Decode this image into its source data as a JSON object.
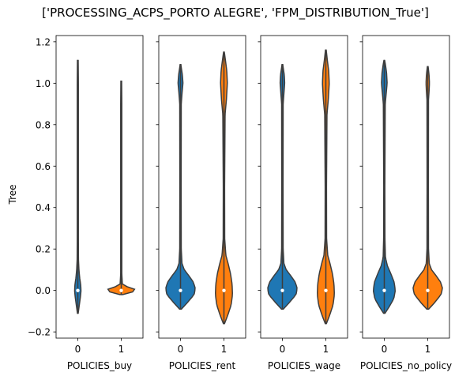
{
  "chart_data": {
    "type": "violin",
    "suptitle": "['PROCESSING_ACPS_PORTO ALEGRE', 'FPM_DISTRIBUTION_True']",
    "ylabel": "Tree",
    "ylim": [
      -0.23,
      1.23
    ],
    "yticks": [
      -0.2,
      0.0,
      0.2,
      0.4,
      0.6,
      0.8,
      1.0,
      1.2
    ],
    "ytick_labels": [
      "−0.2",
      "0.0",
      "0.2",
      "0.4",
      "0.6",
      "0.8",
      "1.0",
      "1.2"
    ],
    "sharey": true,
    "category_colors": [
      "#1f77b4",
      "#ff7f0e"
    ],
    "panels": [
      {
        "xlabel": "POLICIES_buy",
        "categories": [
          "0",
          "1"
        ],
        "violins": [
          {
            "category": "0",
            "min": -0.11,
            "max": 1.11,
            "median": 0.0,
            "profile": [
              [
                -0.11,
                0.02
              ],
              [
                -0.07,
                0.08
              ],
              [
                -0.03,
                0.14
              ],
              [
                0.0,
                0.17
              ],
              [
                0.03,
                0.15
              ],
              [
                0.06,
                0.1
              ],
              [
                0.1,
                0.06
              ],
              [
                0.15,
                0.035
              ],
              [
                0.25,
                0.03
              ],
              [
                0.5,
                0.03
              ],
              [
                0.8,
                0.03
              ],
              [
                1.0,
                0.03
              ],
              [
                1.11,
                0.02
              ]
            ]
          },
          {
            "category": "1",
            "min": -0.02,
            "max": 1.01,
            "median": 0.0,
            "profile": [
              [
                -0.02,
                0.08
              ],
              [
                -0.012,
                0.45
              ],
              [
                -0.004,
                0.7
              ],
              [
                0.0,
                0.75
              ],
              [
                0.005,
                0.72
              ],
              [
                0.012,
                0.55
              ],
              [
                0.02,
                0.25
              ],
              [
                0.03,
                0.06
              ],
              [
                0.08,
                0.03
              ],
              [
                0.5,
                0.03
              ],
              [
                0.9,
                0.03
              ],
              [
                1.01,
                0.02
              ]
            ]
          }
        ]
      },
      {
        "xlabel": "POLICIES_rent",
        "categories": [
          "0",
          "1"
        ],
        "violins": [
          {
            "category": "0",
            "min": -0.09,
            "max": 1.09,
            "median": 0.0,
            "profile": [
              [
                -0.09,
                0.05
              ],
              [
                -0.06,
                0.35
              ],
              [
                -0.02,
                0.72
              ],
              [
                0.01,
                0.78
              ],
              [
                0.04,
                0.68
              ],
              [
                0.07,
                0.45
              ],
              [
                0.1,
                0.2
              ],
              [
                0.13,
                0.08
              ],
              [
                0.2,
                0.04
              ],
              [
                0.5,
                0.035
              ],
              [
                0.9,
                0.04
              ],
              [
                0.95,
                0.08
              ],
              [
                1.0,
                0.13
              ],
              [
                1.04,
                0.1
              ],
              [
                1.07,
                0.05
              ],
              [
                1.09,
                0.02
              ]
            ]
          },
          {
            "category": "1",
            "min": -0.16,
            "max": 1.15,
            "median": 0.0,
            "profile": [
              [
                -0.16,
                0.03
              ],
              [
                -0.12,
                0.2
              ],
              [
                -0.07,
                0.38
              ],
              [
                -0.02,
                0.45
              ],
              [
                0.03,
                0.43
              ],
              [
                0.08,
                0.35
              ],
              [
                0.13,
                0.22
              ],
              [
                0.17,
                0.1
              ],
              [
                0.25,
                0.04
              ],
              [
                0.5,
                0.035
              ],
              [
                0.85,
                0.06
              ],
              [
                0.92,
                0.13
              ],
              [
                1.0,
                0.18
              ],
              [
                1.06,
                0.15
              ],
              [
                1.11,
                0.08
              ],
              [
                1.15,
                0.02
              ]
            ]
          }
        ]
      },
      {
        "xlabel": "POLICIES_wage",
        "categories": [
          "0",
          "1"
        ],
        "violins": [
          {
            "category": "0",
            "min": -0.09,
            "max": 1.09,
            "median": 0.0,
            "profile": [
              [
                -0.09,
                0.05
              ],
              [
                -0.06,
                0.35
              ],
              [
                -0.02,
                0.72
              ],
              [
                0.01,
                0.78
              ],
              [
                0.04,
                0.68
              ],
              [
                0.07,
                0.45
              ],
              [
                0.1,
                0.2
              ],
              [
                0.13,
                0.08
              ],
              [
                0.2,
                0.04
              ],
              [
                0.5,
                0.035
              ],
              [
                0.9,
                0.04
              ],
              [
                0.95,
                0.08
              ],
              [
                1.0,
                0.12
              ],
              [
                1.04,
                0.1
              ],
              [
                1.07,
                0.05
              ],
              [
                1.09,
                0.02
              ]
            ]
          },
          {
            "category": "1",
            "min": -0.16,
            "max": 1.16,
            "median": 0.0,
            "profile": [
              [
                -0.16,
                0.03
              ],
              [
                -0.12,
                0.2
              ],
              [
                -0.07,
                0.38
              ],
              [
                -0.02,
                0.45
              ],
              [
                0.03,
                0.43
              ],
              [
                0.08,
                0.35
              ],
              [
                0.13,
                0.22
              ],
              [
                0.17,
                0.1
              ],
              [
                0.25,
                0.04
              ],
              [
                0.5,
                0.035
              ],
              [
                0.85,
                0.06
              ],
              [
                0.92,
                0.13
              ],
              [
                1.0,
                0.18
              ],
              [
                1.06,
                0.15
              ],
              [
                1.11,
                0.08
              ],
              [
                1.16,
                0.02
              ]
            ]
          }
        ]
      },
      {
        "xlabel": "POLICIES_no_policy",
        "categories": [
          "0",
          "1"
        ],
        "violins": [
          {
            "category": "0",
            "min": -0.11,
            "max": 1.11,
            "median": 0.0,
            "profile": [
              [
                -0.11,
                0.04
              ],
              [
                -0.08,
                0.25
              ],
              [
                -0.04,
                0.5
              ],
              [
                0.0,
                0.58
              ],
              [
                0.04,
                0.52
              ],
              [
                0.08,
                0.35
              ],
              [
                0.12,
                0.16
              ],
              [
                0.16,
                0.06
              ],
              [
                0.25,
                0.035
              ],
              [
                0.5,
                0.03
              ],
              [
                0.9,
                0.05
              ],
              [
                0.95,
                0.1
              ],
              [
                1.0,
                0.15
              ],
              [
                1.05,
                0.12
              ],
              [
                1.09,
                0.06
              ],
              [
                1.11,
                0.02
              ]
            ]
          },
          {
            "category": "1",
            "min": -0.09,
            "max": 1.08,
            "median": 0.0,
            "profile": [
              [
                -0.09,
                0.05
              ],
              [
                -0.06,
                0.35
              ],
              [
                -0.02,
                0.7
              ],
              [
                0.01,
                0.78
              ],
              [
                0.04,
                0.68
              ],
              [
                0.07,
                0.45
              ],
              [
                0.1,
                0.2
              ],
              [
                0.13,
                0.08
              ],
              [
                0.2,
                0.04
              ],
              [
                0.5,
                0.035
              ],
              [
                0.92,
                0.04
              ],
              [
                0.96,
                0.07
              ],
              [
                1.0,
                0.09
              ],
              [
                1.04,
                0.07
              ],
              [
                1.08,
                0.02
              ]
            ]
          }
        ]
      }
    ]
  }
}
